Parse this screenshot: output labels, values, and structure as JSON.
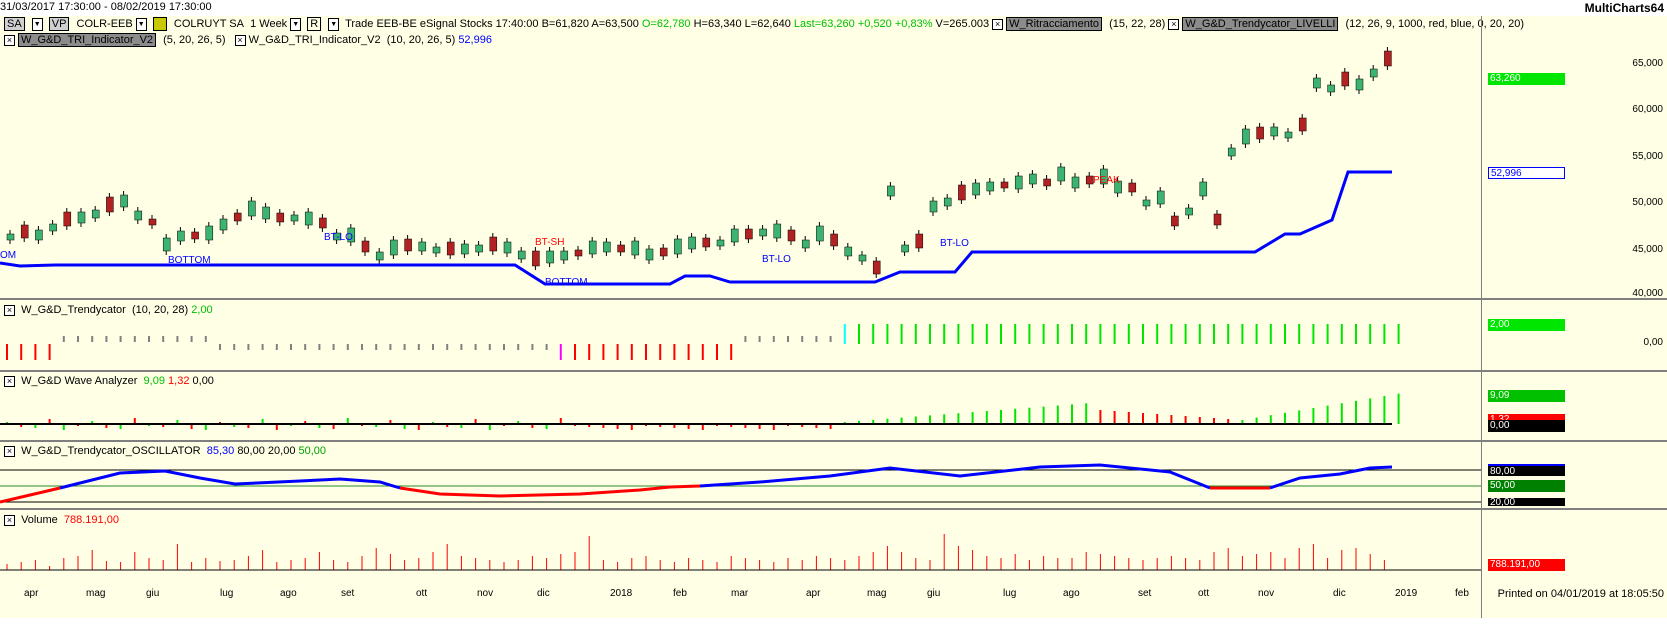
{
  "window": {
    "date_range": "31/03/2017 17:30:00 - 08/02/2019 17:30:00",
    "brand": "MultiCharts64"
  },
  "header": {
    "symbol_chip": "SA",
    "vp_chip": "VP",
    "symbol": "COLR-EEB",
    "name": "COLRUYT SA",
    "period": "1 Week",
    "r_chip": "R",
    "trade_info": "Trade  EEB-BE  eSignal  Stocks  17:40:00",
    "bid": "B=61,820",
    "ask": "A=63,500",
    "open": "O=62,780",
    "high": "H=63,340",
    "low": "L=62,640",
    "last": "Last=63,260",
    "change": "+0,520",
    "change_pct": "+0,83%",
    "volume": "V=265.003",
    "ind1_name": "W_Ritracciamento",
    "ind1_params": "(15, 22, 28)",
    "ind2_name": "W_G&D_Trendycator_LIVELLI",
    "ind2_params": "(12, 26, 9, 1000, red, blue, 0, 20, 20)",
    "ind3_name": "W_G&D_TRI_Indicator_V2",
    "ind3_params": "(5, 20, 26, 5)",
    "ind4_name": "W_G&D_TRI_Indicator_V2",
    "ind4_params": "(10, 20, 26, 5)",
    "ind4_value": "52,996"
  },
  "price_axis": {
    "ticks": [
      "65,000",
      "60,000",
      "55,000",
      "50,000",
      "45,000",
      "40,000"
    ],
    "last_tag": "63,260",
    "tri_tag": "52,996"
  },
  "annotations": [
    {
      "text": "OM",
      "color": "#0000ff"
    },
    {
      "text": "BOTTOM",
      "color": "#0000ff"
    },
    {
      "text": "BT-LO",
      "color": "#0000ff"
    },
    {
      "text": "BT-SH",
      "color": "#ff0000"
    },
    {
      "text": "BOTTOM",
      "color": "#0000ff"
    },
    {
      "text": "BT-LO",
      "color": "#0000ff"
    },
    {
      "text": "BT-LO",
      "color": "#0000ff"
    },
    {
      "text": "PEAK",
      "color": "#ff0000"
    }
  ],
  "panel_trendycator": {
    "name": "W_G&D_Trendycator",
    "params": "(10, 20, 28)",
    "value": "2,00",
    "ticks": [
      "2,00",
      "0,00"
    ]
  },
  "panel_wave": {
    "name": "W_G&D Wave Analyzer",
    "v1": "9,09",
    "v2": "1,32",
    "v3": "0,00",
    "tags": [
      "9,09",
      "1,32",
      "0,00"
    ]
  },
  "panel_osc": {
    "name": "W_G&D_Trendycator_OSCILLATOR",
    "v1": "85,30",
    "v2": "80,00",
    "v3": "20,00",
    "v4": "50,00",
    "tags": [
      "80,00",
      "50,00",
      "20,00"
    ]
  },
  "panel_volume": {
    "name": "Volume",
    "value": "788.191,00",
    "tag": "788.191,00"
  },
  "x_axis": [
    "apr",
    "mag",
    "giu",
    "lug",
    "ago",
    "set",
    "ott",
    "nov",
    "dic",
    "2018",
    "feb",
    "mar",
    "apr",
    "mag",
    "giu",
    "lug",
    "ago",
    "set",
    "ott",
    "nov",
    "dic",
    "2019",
    "feb"
  ],
  "footer": {
    "printed": "Printed on 04/01/2019 at 18:05:50"
  },
  "colors": {
    "background": "#ffffe6",
    "up_candle": "#3cb371",
    "down_candle": "#b22222",
    "tri_line": "#0000ff",
    "green_bar": "#00e600",
    "red_bar": "#ff0000",
    "gray_bar": "#808080"
  }
}
